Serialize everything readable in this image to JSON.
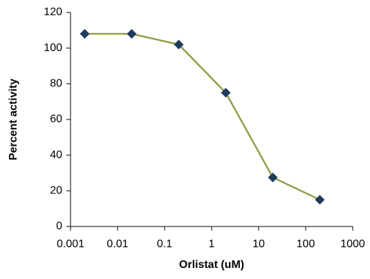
{
  "chart_data": {
    "type": "line",
    "x_label": "Orlistat (uM)",
    "y_label": "Percent activity",
    "x": [
      0.002,
      0.02,
      0.2,
      2,
      20,
      200
    ],
    "series": [
      {
        "color": "#8f9e45",
        "marker_color": "#1f3b5e",
        "values": [
          108,
          108,
          102,
          75,
          27.5,
          15
        ]
      }
    ],
    "x_log": true,
    "xlim": [
      0.001,
      1000
    ],
    "xticks": [
      0.001,
      0.01,
      0.1,
      1,
      10,
      100,
      1000
    ],
    "ylim": [
      0,
      120
    ],
    "yticks": [
      0,
      20,
      40,
      60,
      80,
      100,
      120
    ],
    "grid": false
  }
}
